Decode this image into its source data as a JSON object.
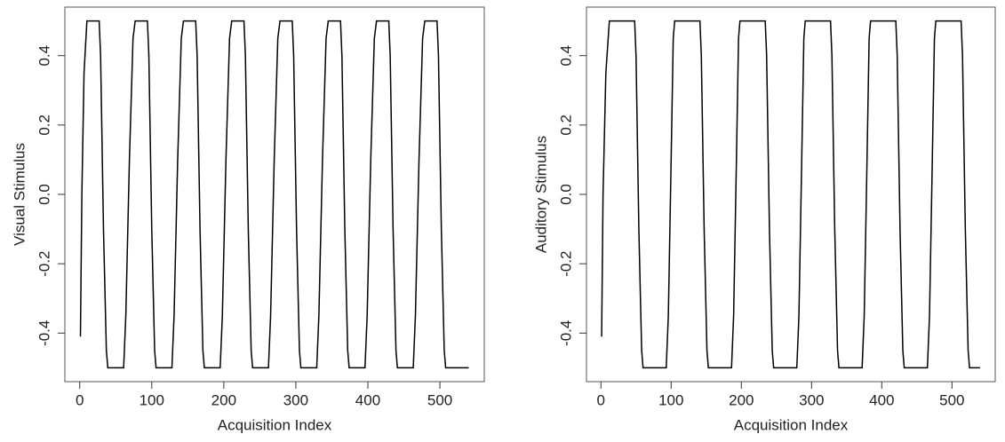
{
  "chart_data": [
    {
      "type": "line",
      "ylabel": "Visual Stimulus",
      "xlabel": "Acquisition Index",
      "color": "#000000",
      "xlim": [
        -20.6,
        561.6
      ],
      "ylim": [
        -0.54,
        0.54
      ],
      "xticks": [
        0,
        100,
        200,
        300,
        400,
        500
      ],
      "yticks": [
        -0.4,
        -0.2,
        {
          "value": 0,
          "label": "0.0"
        },
        0.2,
        0.4
      ],
      "x": [
        1,
        3,
        6,
        10,
        27,
        29,
        33,
        37,
        39,
        61,
        64,
        69,
        74,
        77,
        94,
        96,
        100,
        104,
        106,
        128,
        131,
        136,
        141,
        144,
        161,
        163,
        167,
        171,
        173,
        195,
        198,
        203,
        208,
        211,
        228,
        230,
        234,
        238,
        240,
        262,
        265,
        270,
        275,
        278,
        295,
        297,
        301,
        305,
        307,
        329,
        332,
        337,
        342,
        345,
        362,
        364,
        368,
        372,
        374,
        396,
        399,
        404,
        409,
        412,
        429,
        431,
        435,
        439,
        441,
        463,
        466,
        471,
        476,
        479,
        496,
        498,
        502,
        506,
        508,
        540
      ],
      "values": [
        -0.41,
        0.0,
        0.35,
        0.5,
        0.5,
        0.4,
        -0.1,
        -0.45,
        -0.5,
        -0.5,
        -0.35,
        0.1,
        0.45,
        0.5,
        0.5,
        0.4,
        -0.1,
        -0.45,
        -0.5,
        -0.5,
        -0.35,
        0.1,
        0.45,
        0.5,
        0.5,
        0.4,
        -0.1,
        -0.45,
        -0.5,
        -0.5,
        -0.35,
        0.1,
        0.45,
        0.5,
        0.5,
        0.4,
        -0.1,
        -0.45,
        -0.5,
        -0.5,
        -0.35,
        0.1,
        0.45,
        0.5,
        0.5,
        0.4,
        -0.1,
        -0.45,
        -0.5,
        -0.5,
        -0.35,
        0.1,
        0.45,
        0.5,
        0.5,
        0.4,
        -0.1,
        -0.45,
        -0.5,
        -0.5,
        -0.35,
        0.1,
        0.45,
        0.5,
        0.5,
        0.4,
        -0.1,
        -0.45,
        -0.5,
        -0.5,
        -0.35,
        0.1,
        0.45,
        0.5,
        0.5,
        0.4,
        -0.1,
        -0.45,
        -0.5,
        -0.5
      ]
    },
    {
      "type": "line",
      "ylabel": "Auditory Stimulus",
      "xlabel": "Acquisition Index",
      "color": "#000000",
      "xlim": [
        -20.6,
        561.6
      ],
      "ylim": [
        -0.54,
        0.54
      ],
      "xticks": [
        0,
        100,
        200,
        300,
        400,
        500
      ],
      "yticks": [
        -0.4,
        -0.2,
        {
          "value": 0,
          "label": "0.0"
        },
        0.2,
        0.4
      ],
      "x": [
        1,
        3,
        7,
        12,
        48,
        50,
        54,
        58,
        60,
        93,
        96,
        100,
        103,
        105,
        141,
        143,
        147,
        151,
        153,
        186,
        189,
        193,
        196,
        198,
        234,
        236,
        240,
        244,
        246,
        279,
        282,
        286,
        289,
        291,
        327,
        329,
        333,
        337,
        339,
        372,
        375,
        379,
        382,
        384,
        420,
        422,
        426,
        430,
        432,
        465,
        468,
        472,
        475,
        477,
        513,
        515,
        519,
        523,
        525,
        540
      ],
      "values": [
        -0.41,
        0.0,
        0.35,
        0.5,
        0.5,
        0.4,
        -0.1,
        -0.45,
        -0.5,
        -0.5,
        -0.35,
        0.1,
        0.45,
        0.5,
        0.5,
        0.4,
        -0.1,
        -0.45,
        -0.5,
        -0.5,
        -0.35,
        0.1,
        0.45,
        0.5,
        0.5,
        0.4,
        -0.1,
        -0.45,
        -0.5,
        -0.5,
        -0.35,
        0.1,
        0.45,
        0.5,
        0.5,
        0.4,
        -0.1,
        -0.45,
        -0.5,
        -0.5,
        -0.35,
        0.1,
        0.45,
        0.5,
        0.5,
        0.4,
        -0.1,
        -0.45,
        -0.5,
        -0.5,
        -0.35,
        0.1,
        0.45,
        0.5,
        0.5,
        0.4,
        -0.1,
        -0.45,
        -0.5,
        -0.5
      ]
    }
  ]
}
